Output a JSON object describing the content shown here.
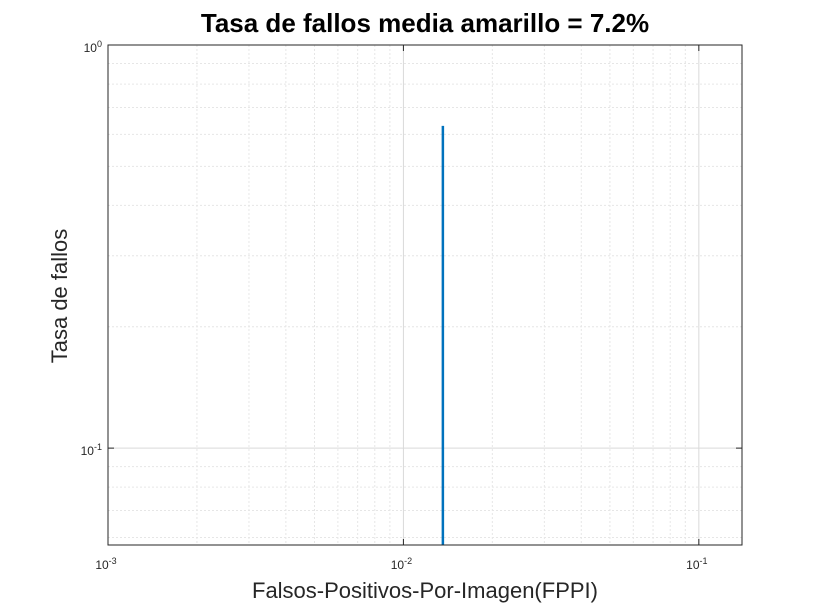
{
  "chart_data": {
    "type": "line",
    "title": "Tasa de fallos media amarillo = 7.2%",
    "xlabel": "Falsos-Positivos-Por-Imagen(FPPI)",
    "ylabel": "Tasa de fallos",
    "x_scale": "log",
    "y_scale": "log",
    "xlim": [
      0.001,
      0.14
    ],
    "ylim": [
      0.0575,
      1
    ],
    "grid": true,
    "minor_grid": true,
    "x_ticks": [
      {
        "value": 0.001,
        "base": "10",
        "exp": "-3"
      },
      {
        "value": 0.01,
        "base": "10",
        "exp": "-2"
      },
      {
        "value": 0.1,
        "base": "10",
        "exp": "-1"
      }
    ],
    "y_ticks": [
      {
        "value": 0.1,
        "base": "10",
        "exp": "-1"
      },
      {
        "value": 1,
        "base": "10",
        "exp": "0"
      }
    ],
    "series": [
      {
        "color": "#0072BD",
        "x": [
          0.0136,
          0.0136
        ],
        "y": [
          0.0575,
          0.63
        ]
      }
    ]
  }
}
